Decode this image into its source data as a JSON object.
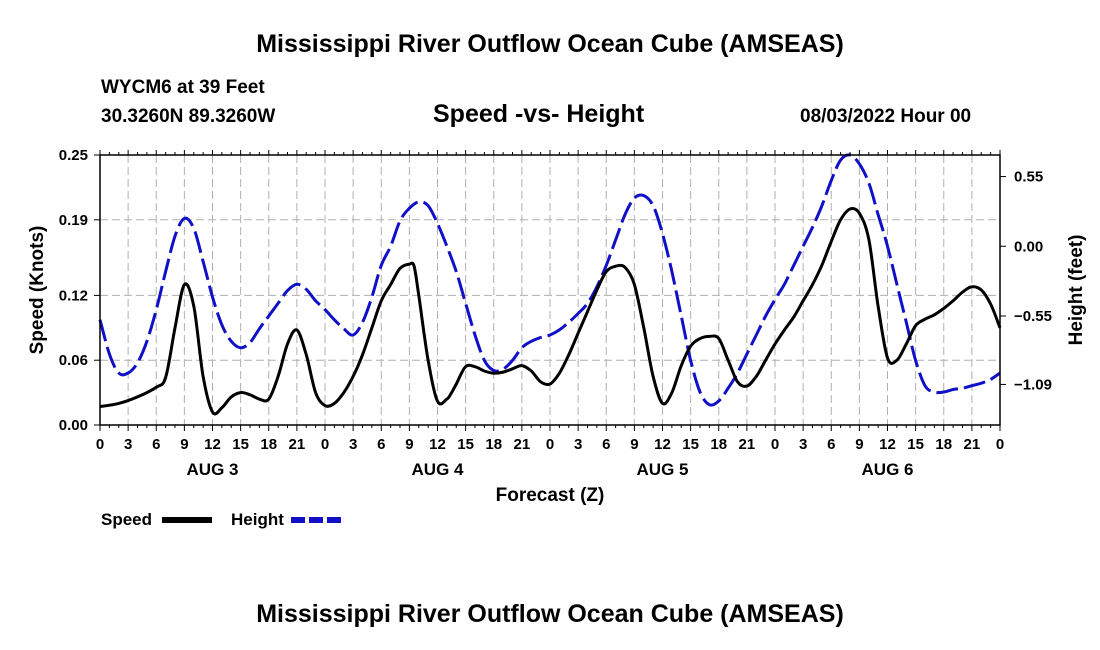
{
  "page_title": "Mississippi River Outflow Ocean Cube (AMSEAS)",
  "station": "WYCM6 at 39 Feet",
  "location": "30.3260N  89.3260W",
  "plot_title": "Speed -vs- Height",
  "run_time": "08/03/2022 Hour 00",
  "footer_title": "Mississippi River Outflow Ocean Cube (AMSEAS)",
  "colors": {
    "speed": "#000000",
    "height": "#1010c8",
    "grid": "#b0b0b0"
  },
  "legend": {
    "speed_label": "Speed",
    "height_label": "Height"
  },
  "chart_data": {
    "type": "line",
    "title": "Speed -vs- Height",
    "xlabel": "Forecast (Z)",
    "ylabel": "Speed (Knots)",
    "y2label": "Height (feet)",
    "xlim": [
      0,
      96
    ],
    "ylim": [
      0,
      0.25
    ],
    "y2lim": [
      -1.41,
      0.72
    ],
    "grid": true,
    "legend_position": "bottom-left",
    "x_ticks": [
      0,
      3,
      6,
      9,
      12,
      15,
      18,
      21,
      24,
      27,
      30,
      33,
      36,
      39,
      42,
      45,
      48,
      51,
      54,
      57,
      60,
      63,
      66,
      69,
      72,
      75,
      78,
      81,
      84,
      87,
      90,
      93,
      96
    ],
    "x_tick_labels": [
      "0",
      "3",
      "6",
      "9",
      "12",
      "15",
      "18",
      "21",
      "0",
      "3",
      "6",
      "9",
      "12",
      "15",
      "18",
      "21",
      "0",
      "3",
      "6",
      "9",
      "12",
      "15",
      "18",
      "21",
      "0",
      "3",
      "6",
      "9",
      "12",
      "15",
      "18",
      "21",
      "0"
    ],
    "day_labels": [
      {
        "x": 12,
        "label": "AUG 3"
      },
      {
        "x": 36,
        "label": "AUG 4"
      },
      {
        "x": 60,
        "label": "AUG 5"
      },
      {
        "x": 84,
        "label": "AUG 6"
      }
    ],
    "y_ticks": [
      0.0,
      0.06,
      0.12,
      0.19,
      0.25
    ],
    "y_tick_labels": [
      "0.00",
      "0.06",
      "0.12",
      "0.19",
      "0.25"
    ],
    "y2_ticks": [
      0.55,
      0.0,
      -0.55,
      -1.09
    ],
    "y2_tick_labels": [
      "0.55",
      "0.00",
      "−0.55",
      "−1.09"
    ],
    "series": [
      {
        "name": "Speed",
        "axis": "left",
        "style": "solid",
        "x": [
          0,
          2,
          4,
          6,
          7,
          8,
          9,
          10,
          11,
          12,
          13,
          14,
          15,
          16,
          17,
          18,
          19,
          20,
          21,
          22,
          23,
          24,
          25,
          26,
          27,
          28,
          29,
          30,
          31,
          32,
          33,
          33.5,
          34,
          35,
          36,
          37,
          37.5,
          38,
          39,
          40,
          41,
          42,
          43,
          44,
          45,
          46,
          47,
          48,
          49,
          50,
          51,
          52,
          53,
          54,
          55,
          56,
          57,
          58,
          59,
          60,
          61,
          62,
          63,
          64,
          65,
          66,
          67,
          68,
          69,
          70,
          71,
          72,
          73,
          74,
          75,
          76,
          77,
          78,
          79,
          80,
          81,
          82,
          83,
          84,
          85,
          86,
          87,
          88,
          89,
          90,
          91,
          92,
          93,
          94,
          95,
          96
        ],
        "values": [
          0.017,
          0.02,
          0.026,
          0.035,
          0.044,
          0.09,
          0.13,
          0.11,
          0.045,
          0.012,
          0.016,
          0.026,
          0.03,
          0.028,
          0.024,
          0.024,
          0.045,
          0.075,
          0.088,
          0.065,
          0.03,
          0.018,
          0.02,
          0.03,
          0.045,
          0.065,
          0.09,
          0.115,
          0.13,
          0.145,
          0.149,
          0.147,
          0.12,
          0.06,
          0.022,
          0.024,
          0.03,
          0.038,
          0.054,
          0.054,
          0.05,
          0.048,
          0.049,
          0.052,
          0.055,
          0.05,
          0.04,
          0.038,
          0.048,
          0.065,
          0.085,
          0.105,
          0.125,
          0.142,
          0.147,
          0.146,
          0.13,
          0.09,
          0.045,
          0.02,
          0.03,
          0.055,
          0.073,
          0.08,
          0.082,
          0.08,
          0.06,
          0.04,
          0.036,
          0.045,
          0.06,
          0.075,
          0.088,
          0.1,
          0.115,
          0.13,
          0.148,
          0.17,
          0.19,
          0.2,
          0.196,
          0.172,
          0.11,
          0.062,
          0.06,
          0.075,
          0.092,
          0.098,
          0.102,
          0.108,
          0.115,
          0.123,
          0.128,
          0.125,
          0.112,
          0.09
        ]
      },
      {
        "name": "Height",
        "axis": "right",
        "style": "dashed",
        "x": [
          0,
          1,
          2,
          3,
          4,
          5,
          6,
          7,
          8,
          9,
          10,
          11,
          12,
          13,
          14,
          15,
          16,
          17,
          18,
          19,
          20,
          21,
          22,
          23,
          24,
          25,
          26,
          27,
          28,
          29,
          30,
          31,
          32,
          33,
          34,
          35,
          36,
          37,
          38,
          39,
          40,
          41,
          42,
          43,
          44,
          45,
          46,
          47,
          48,
          49,
          50,
          51,
          52,
          53,
          54,
          55,
          56,
          57,
          58,
          59,
          60,
          61,
          62,
          63,
          64,
          65,
          66,
          67,
          68,
          69,
          70,
          71,
          72,
          73,
          74,
          75,
          76,
          77,
          78,
          79,
          80,
          81,
          82,
          83,
          84,
          85,
          86,
          87,
          88,
          89,
          90,
          91,
          92,
          93,
          94,
          95,
          96
        ],
        "values": [
          -0.58,
          -0.85,
          -1.0,
          -1.0,
          -0.92,
          -0.75,
          -0.5,
          -0.2,
          0.08,
          0.22,
          0.14,
          -0.12,
          -0.4,
          -0.62,
          -0.75,
          -0.8,
          -0.76,
          -0.65,
          -0.55,
          -0.45,
          -0.35,
          -0.3,
          -0.34,
          -0.43,
          -0.5,
          -0.58,
          -0.65,
          -0.7,
          -0.6,
          -0.4,
          -0.15,
          0.0,
          0.2,
          0.3,
          0.35,
          0.32,
          0.18,
          0.0,
          -0.2,
          -0.45,
          -0.7,
          -0.9,
          -0.98,
          -0.97,
          -0.9,
          -0.8,
          -0.75,
          -0.72,
          -0.7,
          -0.66,
          -0.6,
          -0.53,
          -0.45,
          -0.32,
          -0.15,
          0.05,
          0.25,
          0.38,
          0.4,
          0.32,
          0.1,
          -0.2,
          -0.55,
          -0.9,
          -1.15,
          -1.25,
          -1.22,
          -1.12,
          -1.0,
          -0.85,
          -0.7,
          -0.55,
          -0.42,
          -0.3,
          -0.15,
          0.0,
          0.15,
          0.32,
          0.52,
          0.68,
          0.72,
          0.65,
          0.5,
          0.25,
          0.0,
          -0.3,
          -0.6,
          -0.9,
          -1.1,
          -1.15,
          -1.15,
          -1.13,
          -1.12,
          -1.1,
          -1.08,
          -1.05,
          -1.0
        ]
      }
    ]
  }
}
